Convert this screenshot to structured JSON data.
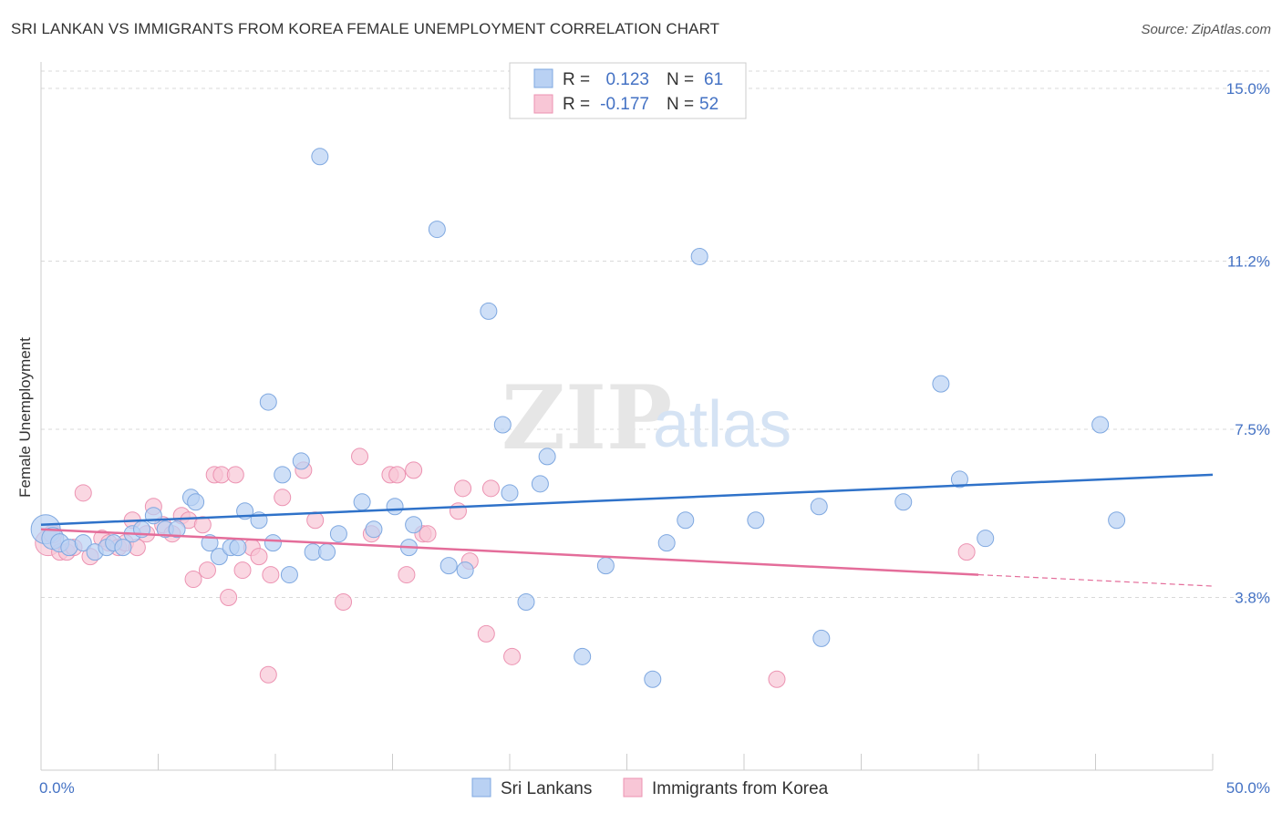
{
  "header": {
    "title": "SRI LANKAN VS IMMIGRANTS FROM KOREA FEMALE UNEMPLOYMENT CORRELATION CHART",
    "source": "Source: ZipAtlas.com"
  },
  "watermark": {
    "zip": "ZIP",
    "atlas": "atlas"
  },
  "colors": {
    "blue_fill": "#b9d1f3",
    "blue_stroke": "#7fa8e0",
    "blue_line": "#2f72c9",
    "pink_fill": "#f8c6d6",
    "pink_stroke": "#ec93b2",
    "pink_line": "#e46d9a",
    "grid": "#d9d9d9",
    "tick_text": "#4472c4"
  },
  "legend": {
    "rows": [
      {
        "r_label": "R =",
        "r_value": "0.123",
        "n_label": "N =",
        "n_value": "61"
      },
      {
        "r_label": "R =",
        "r_value": "-0.177",
        "n_label": "N =",
        "n_value": "52"
      }
    ]
  },
  "chart_data": {
    "type": "scatter",
    "title": "SRI LANKAN VS IMMIGRANTS FROM KOREA FEMALE UNEMPLOYMENT CORRELATION CHART",
    "xlabel": "",
    "ylabel": "Female Unemployment",
    "xlim": [
      0,
      50
    ],
    "ylim": [
      0,
      15.5
    ],
    "x_tick_labels": [
      "0.0%",
      "50.0%"
    ],
    "y_ticks": [
      3.8,
      7.5,
      11.2,
      15.0
    ],
    "y_tick_labels": [
      "3.8%",
      "7.5%",
      "11.2%",
      "15.0%"
    ],
    "grid": true,
    "legend_position": "top-center",
    "series": [
      {
        "name": "Sri Lankans",
        "color": "#b9d1f3",
        "trend": {
          "x0": 0,
          "y0": 5.4,
          "x1": 50,
          "y1": 6.5
        },
        "points": [
          [
            0.2,
            5.3,
            16
          ],
          [
            0.5,
            5.1,
            12
          ],
          [
            0.8,
            5.0,
            10
          ],
          [
            1.2,
            4.9,
            9
          ],
          [
            1.8,
            5.0,
            9
          ],
          [
            2.3,
            4.8,
            9
          ],
          [
            2.8,
            4.9,
            9
          ],
          [
            3.1,
            5.0,
            9
          ],
          [
            3.5,
            4.9,
            9
          ],
          [
            3.9,
            5.2,
            9
          ],
          [
            4.3,
            5.3,
            9
          ],
          [
            4.8,
            5.6,
            9
          ],
          [
            5.3,
            5.3,
            9
          ],
          [
            5.8,
            5.3,
            9
          ],
          [
            6.4,
            6.0,
            9
          ],
          [
            6.6,
            5.9,
            9
          ],
          [
            7.2,
            5.0,
            9
          ],
          [
            7.6,
            4.7,
            9
          ],
          [
            8.1,
            4.9,
            9
          ],
          [
            8.4,
            4.9,
            9
          ],
          [
            8.7,
            5.7,
            9
          ],
          [
            9.3,
            5.5,
            9
          ],
          [
            9.7,
            8.1,
            9
          ],
          [
            9.9,
            5.0,
            9
          ],
          [
            10.3,
            6.5,
            9
          ],
          [
            10.6,
            4.3,
            9
          ],
          [
            11.1,
            6.8,
            9
          ],
          [
            11.6,
            4.8,
            9
          ],
          [
            11.9,
            13.5,
            9
          ],
          [
            12.2,
            4.8,
            9
          ],
          [
            12.7,
            5.2,
            9
          ],
          [
            13.7,
            5.9,
            9
          ],
          [
            14.2,
            5.3,
            9
          ],
          [
            15.1,
            5.8,
            9
          ],
          [
            15.7,
            4.9,
            9
          ],
          [
            15.9,
            5.4,
            9
          ],
          [
            16.9,
            11.9,
            9
          ],
          [
            17.4,
            4.5,
            9
          ],
          [
            18.1,
            4.4,
            9
          ],
          [
            19.1,
            10.1,
            9
          ],
          [
            19.7,
            7.6,
            9
          ],
          [
            20.0,
            6.1,
            9
          ],
          [
            20.7,
            3.7,
            9
          ],
          [
            21.3,
            6.3,
            9
          ],
          [
            21.6,
            6.9,
            9
          ],
          [
            23.1,
            2.5,
            9
          ],
          [
            24.1,
            4.5,
            9
          ],
          [
            26.1,
            2.0,
            9
          ],
          [
            26.7,
            5.0,
            9
          ],
          [
            27.5,
            5.5,
            9
          ],
          [
            28.1,
            11.3,
            9
          ],
          [
            30.5,
            5.5,
            9
          ],
          [
            33.2,
            5.8,
            9
          ],
          [
            33.3,
            2.9,
            9
          ],
          [
            36.8,
            5.9,
            9
          ],
          [
            38.4,
            8.5,
            9
          ],
          [
            39.2,
            6.4,
            9
          ],
          [
            40.3,
            5.1,
            9
          ],
          [
            45.2,
            7.6,
            9
          ],
          [
            45.9,
            5.5,
            9
          ]
        ]
      },
      {
        "name": "Immigrants from Korea",
        "color": "#f8c6d6",
        "trend": {
          "x0": 0,
          "y0": 5.3,
          "x1": 40,
          "y1": 4.3,
          "dashed_to_x": 50,
          "dashed_to_y": 4.05
        },
        "points": [
          [
            0.3,
            5.0,
            14
          ],
          [
            0.5,
            5.2,
            10
          ],
          [
            0.8,
            4.8,
            9
          ],
          [
            1.1,
            4.8,
            9
          ],
          [
            1.4,
            4.9,
            9
          ],
          [
            1.8,
            6.1,
            9
          ],
          [
            2.1,
            4.7,
            9
          ],
          [
            2.6,
            5.1,
            9
          ],
          [
            2.9,
            5.0,
            9
          ],
          [
            3.3,
            4.9,
            9
          ],
          [
            3.6,
            5.0,
            9
          ],
          [
            3.9,
            5.5,
            9
          ],
          [
            4.1,
            4.9,
            9
          ],
          [
            4.5,
            5.2,
            9
          ],
          [
            4.8,
            5.8,
            9
          ],
          [
            5.2,
            5.4,
            9
          ],
          [
            5.6,
            5.2,
            9
          ],
          [
            6.0,
            5.6,
            9
          ],
          [
            6.3,
            5.5,
            9
          ],
          [
            6.5,
            4.2,
            9
          ],
          [
            6.9,
            5.4,
            9
          ],
          [
            7.1,
            4.4,
            9
          ],
          [
            7.4,
            6.5,
            9
          ],
          [
            7.7,
            6.5,
            9
          ],
          [
            8.0,
            3.8,
            9
          ],
          [
            8.3,
            6.5,
            9
          ],
          [
            8.6,
            4.4,
            9
          ],
          [
            9.0,
            4.9,
            9
          ],
          [
            9.3,
            4.7,
            9
          ],
          [
            9.7,
            2.1,
            9
          ],
          [
            9.8,
            4.3,
            9
          ],
          [
            10.3,
            6.0,
            9
          ],
          [
            11.2,
            6.6,
            9
          ],
          [
            11.7,
            5.5,
            9
          ],
          [
            12.9,
            3.7,
            9
          ],
          [
            13.6,
            6.9,
            9
          ],
          [
            14.1,
            5.2,
            9
          ],
          [
            14.9,
            6.5,
            9
          ],
          [
            15.2,
            6.5,
            9
          ],
          [
            15.6,
            4.3,
            9
          ],
          [
            15.9,
            6.6,
            9
          ],
          [
            16.3,
            5.2,
            9
          ],
          [
            16.5,
            5.2,
            9
          ],
          [
            17.8,
            5.7,
            9
          ],
          [
            18.0,
            6.2,
            9
          ],
          [
            18.3,
            4.6,
            9
          ],
          [
            19.0,
            3.0,
            9
          ],
          [
            19.2,
            6.2,
            9
          ],
          [
            20.1,
            2.5,
            9
          ],
          [
            31.4,
            2.0,
            9
          ],
          [
            39.5,
            4.8,
            9
          ]
        ]
      }
    ]
  }
}
